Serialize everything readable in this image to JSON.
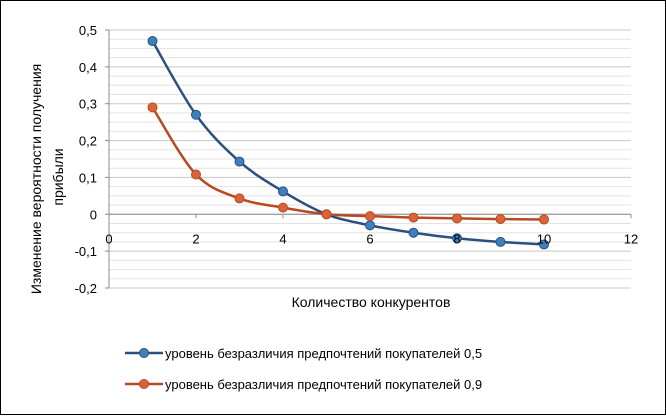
{
  "chart_data": {
    "type": "line",
    "xlabel": "Количество конкурентов",
    "ylabel_lines": [
      "Изменение вероятности получения",
      "прибыли"
    ],
    "xlim": [
      0,
      12
    ],
    "ylim": [
      -0.2,
      0.5
    ],
    "x_ticks": [
      "0",
      "2",
      "4",
      "6",
      "8",
      "10",
      "12"
    ],
    "y_ticks": [
      "-0,2",
      "-0,1",
      "0",
      "0,1",
      "0,2",
      "0,3",
      "0,4",
      "0,5"
    ],
    "grid": true,
    "legend_position": "bottom",
    "x": [
      1,
      2,
      3,
      4,
      5,
      6,
      7,
      8,
      9,
      10
    ],
    "series": [
      {
        "name": "уровень безразличия предпочтений покупателей 0,5",
        "color": "#2b4f7e",
        "marker_color": "#3c80bf",
        "values": [
          0.47,
          0.27,
          0.143,
          0.062,
          0.0,
          -0.03,
          -0.05,
          -0.065,
          -0.075,
          -0.082
        ]
      },
      {
        "name": "уровень безразличия предпочтений покупателей 0,9",
        "color": "#b84a1f",
        "marker_color": "#d9643a",
        "values": [
          0.29,
          0.108,
          0.043,
          0.018,
          0.0,
          -0.005,
          -0.009,
          -0.011,
          -0.013,
          -0.014
        ]
      }
    ]
  }
}
